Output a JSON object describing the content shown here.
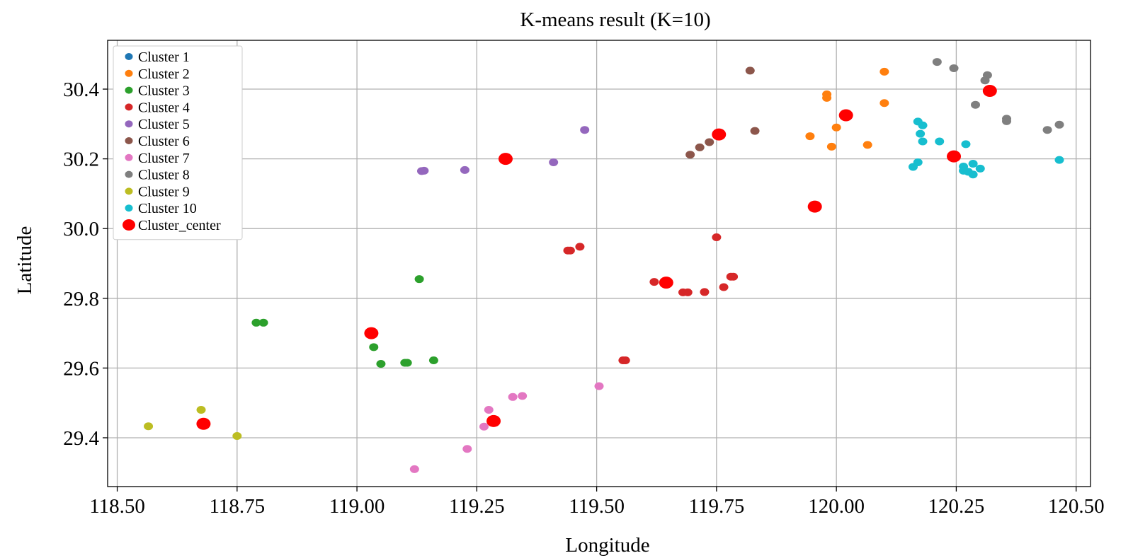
{
  "chart_data": {
    "type": "scatter",
    "title": "K-means result (K=10)",
    "xlabel": "Longitude",
    "ylabel": "Latitude",
    "xlim": [
      118.48,
      120.53
    ],
    "ylim": [
      29.26,
      30.54
    ],
    "xticks": [
      118.5,
      118.75,
      119.0,
      119.25,
      119.5,
      119.75,
      120.0,
      120.25,
      120.5
    ],
    "xtick_labels": [
      "118.50",
      "118.75",
      "119.00",
      "119.25",
      "119.50",
      "119.75",
      "120.00",
      "120.25",
      "120.50"
    ],
    "yticks": [
      29.4,
      29.6,
      29.8,
      30.0,
      30.2,
      30.4
    ],
    "ytick_labels": [
      "29.4",
      "29.6",
      "29.8",
      "30.0",
      "30.2",
      "30.4"
    ],
    "grid": true,
    "legend_position": "top-left",
    "series": [
      {
        "name": "Cluster 1",
        "color": "#1f77b4",
        "points": []
      },
      {
        "name": "Cluster 2",
        "color": "#ff7f0e",
        "points": [
          [
            120.1,
            30.45
          ],
          [
            119.98,
            30.385
          ],
          [
            119.98,
            30.375
          ],
          [
            120.1,
            30.36
          ],
          [
            120.0,
            30.29
          ],
          [
            119.945,
            30.265
          ],
          [
            120.065,
            30.24
          ],
          [
            119.99,
            30.235
          ]
        ]
      },
      {
        "name": "Cluster 3",
        "color": "#2ca02c",
        "points": [
          [
            119.13,
            29.855
          ],
          [
            118.79,
            29.73
          ],
          [
            118.805,
            29.73
          ],
          [
            119.035,
            29.66
          ],
          [
            119.05,
            29.612
          ],
          [
            119.1,
            29.615
          ],
          [
            119.105,
            29.615
          ],
          [
            119.16,
            29.622
          ]
        ]
      },
      {
        "name": "Cluster 4",
        "color": "#d62728",
        "points": [
          [
            119.75,
            29.975
          ],
          [
            119.465,
            29.948
          ],
          [
            119.44,
            29.937
          ],
          [
            119.445,
            29.937
          ],
          [
            119.78,
            29.862
          ],
          [
            119.785,
            29.862
          ],
          [
            119.62,
            29.847
          ],
          [
            119.765,
            29.832
          ],
          [
            119.68,
            29.817
          ],
          [
            119.69,
            29.817
          ],
          [
            119.725,
            29.818
          ],
          [
            119.555,
            29.622
          ],
          [
            119.56,
            29.622
          ]
        ]
      },
      {
        "name": "Cluster 5",
        "color": "#9467bd",
        "points": [
          [
            119.475,
            30.283
          ],
          [
            119.41,
            30.19
          ],
          [
            119.135,
            30.165
          ],
          [
            119.14,
            30.166
          ],
          [
            119.225,
            30.168
          ]
        ]
      },
      {
        "name": "Cluster 6",
        "color": "#8c564b",
        "points": [
          [
            119.82,
            30.453
          ],
          [
            119.83,
            30.28
          ],
          [
            119.735,
            30.248
          ],
          [
            119.715,
            30.233
          ],
          [
            119.695,
            30.212
          ]
        ]
      },
      {
        "name": "Cluster 7",
        "color": "#e377c2",
        "points": [
          [
            119.505,
            29.548
          ],
          [
            119.345,
            29.52
          ],
          [
            119.325,
            29.517
          ],
          [
            119.275,
            29.48
          ],
          [
            119.265,
            29.432
          ],
          [
            119.23,
            29.368
          ],
          [
            119.12,
            29.31
          ]
        ]
      },
      {
        "name": "Cluster 8",
        "color": "#7f7f7f",
        "points": [
          [
            120.21,
            30.478
          ],
          [
            120.245,
            30.46
          ],
          [
            120.315,
            30.44
          ],
          [
            120.31,
            30.425
          ],
          [
            120.29,
            30.355
          ],
          [
            120.355,
            30.315
          ],
          [
            120.355,
            30.308
          ],
          [
            120.465,
            30.298
          ],
          [
            120.44,
            30.283
          ]
        ]
      },
      {
        "name": "Cluster 9",
        "color": "#bcbd22",
        "points": [
          [
            118.675,
            29.48
          ],
          [
            118.565,
            29.433
          ],
          [
            118.75,
            29.405
          ]
        ]
      },
      {
        "name": "Cluster 10",
        "color": "#17becf",
        "points": [
          [
            120.17,
            30.307
          ],
          [
            120.18,
            30.296
          ],
          [
            120.175,
            30.272
          ],
          [
            120.18,
            30.25
          ],
          [
            120.215,
            30.25
          ],
          [
            120.27,
            30.242
          ],
          [
            120.17,
            30.19
          ],
          [
            120.16,
            30.177
          ],
          [
            120.265,
            30.178
          ],
          [
            120.285,
            30.186
          ],
          [
            120.3,
            30.172
          ],
          [
            120.265,
            30.166
          ],
          [
            120.275,
            30.163
          ],
          [
            120.285,
            30.155
          ],
          [
            120.465,
            30.197
          ]
        ]
      }
    ],
    "centers": {
      "name": "Cluster_center",
      "color": "#ff0000",
      "points": [
        [
          120.32,
          30.395
        ],
        [
          120.02,
          30.325
        ],
        [
          119.755,
          30.27
        ],
        [
          119.31,
          30.2
        ],
        [
          120.245,
          30.207
        ],
        [
          119.955,
          30.063
        ],
        [
          119.645,
          29.845
        ],
        [
          119.03,
          29.7
        ],
        [
          118.68,
          29.44
        ],
        [
          119.285,
          29.448
        ]
      ]
    }
  }
}
